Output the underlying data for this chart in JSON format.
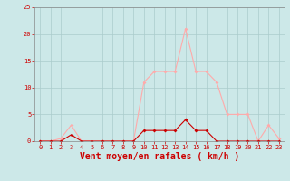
{
  "x": [
    0,
    1,
    2,
    3,
    4,
    5,
    6,
    7,
    8,
    9,
    10,
    11,
    12,
    13,
    14,
    15,
    16,
    17,
    18,
    19,
    20,
    21,
    22,
    23
  ],
  "y_rafales": [
    0,
    0,
    0.5,
    3,
    0,
    0,
    0,
    0,
    0,
    0,
    11,
    13,
    13,
    13,
    21,
    13,
    13,
    11,
    5,
    5,
    5,
    0,
    3,
    0.5
  ],
  "y_moyen": [
    0,
    0,
    0,
    1.2,
    0,
    0,
    0,
    0,
    0,
    0,
    2,
    2,
    2,
    2,
    4,
    2,
    2,
    0,
    0,
    0,
    0,
    0,
    0,
    0
  ],
  "color_rafales": "#ffaaaa",
  "color_moyen": "#cc0000",
  "xlabel": "Vent moyen/en rafales ( km/h )",
  "ylim": [
    0,
    25
  ],
  "xlim": [
    -0.5,
    23.5
  ],
  "yticks": [
    0,
    5,
    10,
    15,
    20,
    25
  ],
  "xticks": [
    0,
    1,
    2,
    3,
    4,
    5,
    6,
    7,
    8,
    9,
    10,
    11,
    12,
    13,
    14,
    15,
    16,
    17,
    18,
    19,
    20,
    21,
    22,
    23
  ],
  "bg_color": "#cce8e8",
  "grid_color": "#aacccc",
  "label_color": "#cc0000",
  "tick_fontsize": 5,
  "xlabel_fontsize": 7
}
